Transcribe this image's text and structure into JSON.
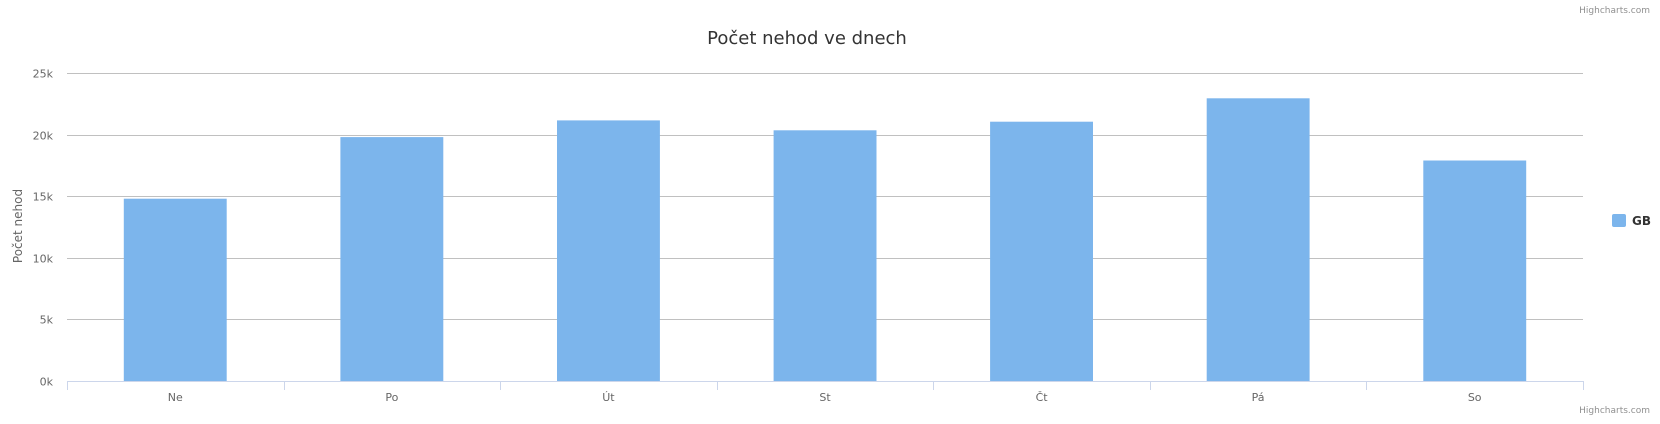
{
  "credits": {
    "top": "Highcharts.com",
    "bottom": "Highcharts.com"
  },
  "chart_data": {
    "type": "bar",
    "title": "Počet nehod ve dnech",
    "xlabel": "",
    "ylabel": "Počet nehod",
    "categories": [
      "Ne",
      "Po",
      "Út",
      "St",
      "Čt",
      "Pá",
      "So"
    ],
    "series": [
      {
        "name": "GB",
        "color": "#7cb5ec",
        "values": [
          14800,
          19800,
          21150,
          20350,
          21050,
          22950,
          17900
        ]
      }
    ],
    "ylim": [
      0,
      25000
    ],
    "yticks": [
      "0k",
      "5k",
      "10k",
      "15k",
      "20k",
      "25k"
    ],
    "grid": true,
    "legend": "right"
  }
}
